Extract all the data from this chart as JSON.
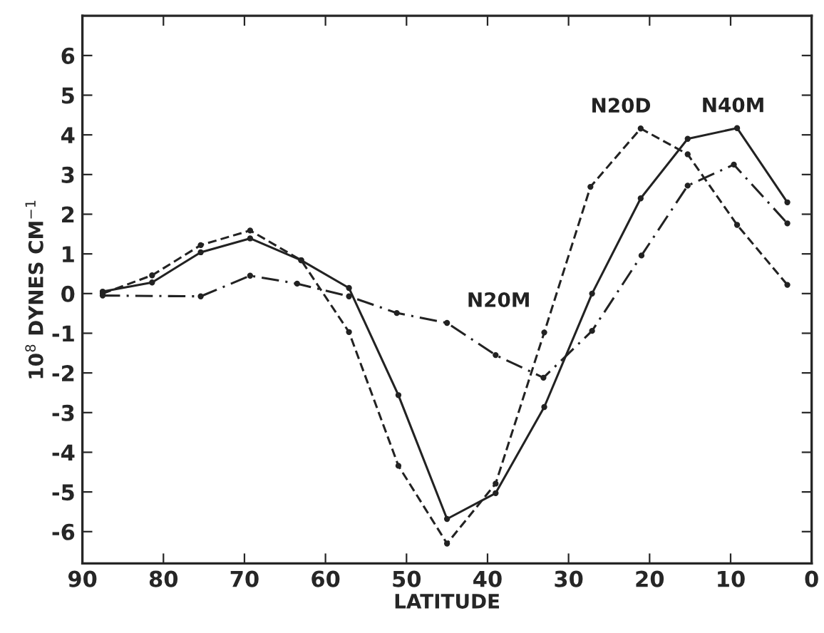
{
  "chart_data": {
    "type": "line",
    "xlabel": "LATITUDE",
    "ylabel": "10$^{8}$ DYNES CM$^{−1}$",
    "xlim": [
      90,
      0
    ],
    "xticks": [
      90,
      80,
      70,
      60,
      50,
      40,
      30,
      20,
      10,
      0
    ],
    "ylim": [
      -6.8,
      7.0
    ],
    "yticks": [
      -6,
      -5,
      -4,
      -3,
      -2,
      -1,
      0,
      1,
      2,
      3,
      4,
      5,
      6
    ],
    "marker": "circle",
    "grid": false,
    "series": [
      {
        "name": "N40M",
        "color": "#222222",
        "line_style": "solid",
        "x": [
          87.5,
          81.4,
          75.4,
          69.3,
          63.0,
          57.1,
          51.0,
          45.0,
          39.0,
          33.0,
          27.1,
          21.1,
          15.3,
          9.2,
          3.0
        ],
        "values": [
          0.05,
          0.28,
          1.04,
          1.39,
          0.84,
          0.14,
          -2.56,
          -5.68,
          -5.03,
          -2.86,
          0.0,
          2.4,
          3.9,
          4.17,
          2.3
        ]
      },
      {
        "name": "N20D",
        "color": "#222222",
        "line_style": "dashed",
        "x": [
          87.5,
          81.4,
          75.4,
          69.3,
          63.0,
          57.1,
          51.0,
          45.0,
          39.0,
          33.0,
          27.3,
          21.1,
          15.3,
          9.2,
          3.0
        ],
        "values": [
          0.0,
          0.46,
          1.22,
          1.59,
          0.84,
          -0.97,
          -4.34,
          -6.3,
          -4.79,
          -0.98,
          2.69,
          4.16,
          3.51,
          1.73,
          0.22
        ]
      },
      {
        "name": "N20M",
        "color": "#222222",
        "line_style": "dashdot",
        "x": [
          87.5,
          75.4,
          69.3,
          63.5,
          57.1,
          51.2,
          45.0,
          39.0,
          33.1,
          27.1,
          21.0,
          15.3,
          9.6,
          3.0
        ],
        "values": [
          -0.05,
          -0.07,
          0.45,
          0.25,
          -0.07,
          -0.49,
          -0.74,
          -1.55,
          -2.12,
          -0.94,
          0.96,
          2.72,
          3.25,
          1.77
        ]
      }
    ]
  }
}
